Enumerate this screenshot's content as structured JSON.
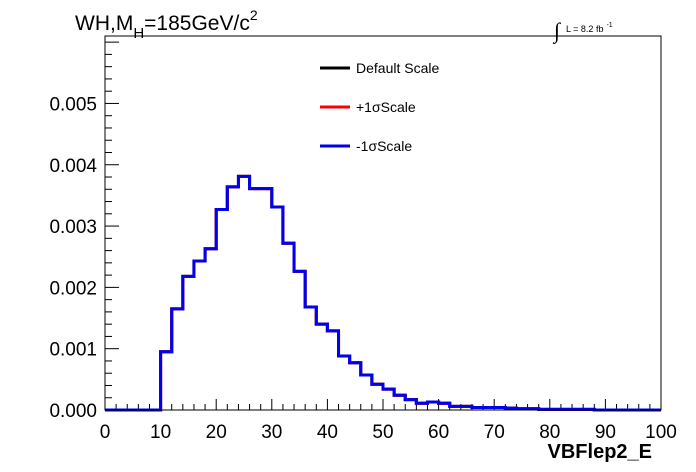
{
  "chart_data": {
    "type": "line",
    "title": "WH,M",
    "title_subscript": "H",
    "title_suffix": "=185GeV/c",
    "title_superscript": "2",
    "lumi_integral": "∫",
    "lumi_label": "L = 8.2 fb",
    "lumi_superscript": "-1",
    "xlabel": "VBFlep2_E",
    "ylabel": "",
    "xlim": [
      0,
      100
    ],
    "ylim": [
      0,
      0.0061
    ],
    "x_ticks": [
      0,
      10,
      20,
      30,
      40,
      50,
      60,
      70,
      80,
      90,
      100
    ],
    "x_tick_labels": [
      "0",
      "10",
      "20",
      "30",
      "40",
      "50",
      "60",
      "70",
      "80",
      "90",
      "100"
    ],
    "y_ticks": [
      0,
      0.001,
      0.002,
      0.003,
      0.004,
      0.005
    ],
    "y_tick_labels": [
      "0.000",
      "0.001",
      "0.002",
      "0.003",
      "0.004",
      "0.005"
    ],
    "bin_edges": [
      0,
      2,
      4,
      6,
      8,
      10,
      12,
      14,
      16,
      18,
      20,
      22,
      24,
      26,
      28,
      30,
      32,
      34,
      36,
      38,
      40,
      42,
      44,
      46,
      48,
      50,
      52,
      54,
      56,
      58,
      60,
      62,
      64,
      66,
      68,
      70,
      72,
      74,
      76,
      78,
      80,
      82,
      84,
      86,
      88,
      90,
      92,
      94,
      96,
      98,
      100
    ],
    "legend_position": "top-center",
    "series": [
      {
        "name": "Default Scale",
        "color": "#000000",
        "values": [
          0,
          0,
          0,
          0,
          0,
          0.00095,
          0.00165,
          0.00218,
          0.00243,
          0.00263,
          0.00327,
          0.00364,
          0.00381,
          0.00361,
          0.00361,
          0.00331,
          0.00272,
          0.00226,
          0.00168,
          0.0014,
          0.00129,
          0.00088,
          0.00077,
          0.00057,
          0.00042,
          0.00034,
          0.00024,
          0.00017,
          0.00011,
          0.00013,
          0.00011,
          6e-05,
          6e-05,
          4e-05,
          4e-05,
          4e-05,
          3e-05,
          2e-05,
          2e-05,
          1e-05,
          1e-05,
          1e-05,
          1e-05,
          1e-05,
          0,
          0,
          0,
          0,
          0,
          0
        ]
      },
      {
        "name": "+1σScale",
        "color": "#ff0000",
        "values": [
          0,
          0,
          0,
          0,
          0,
          0.00095,
          0.00165,
          0.00218,
          0.00243,
          0.00263,
          0.00327,
          0.00364,
          0.00381,
          0.00361,
          0.00361,
          0.00331,
          0.00272,
          0.00226,
          0.00168,
          0.0014,
          0.00129,
          0.00088,
          0.00077,
          0.00057,
          0.00042,
          0.00034,
          0.00024,
          0.00017,
          0.00011,
          0.00013,
          0.00011,
          6e-05,
          6e-05,
          4e-05,
          4e-05,
          4e-05,
          3e-05,
          2e-05,
          2e-05,
          1e-05,
          1e-05,
          1e-05,
          1e-05,
          1e-05,
          0,
          0,
          0,
          0,
          0,
          0
        ]
      },
      {
        "name": "-1σScale",
        "color": "#0000ee",
        "values": [
          0,
          0,
          0,
          0,
          0,
          0.00095,
          0.00165,
          0.00218,
          0.00243,
          0.00263,
          0.00327,
          0.00364,
          0.00381,
          0.00361,
          0.00361,
          0.00331,
          0.00272,
          0.00226,
          0.00168,
          0.0014,
          0.00129,
          0.00088,
          0.00077,
          0.00057,
          0.00042,
          0.00034,
          0.00024,
          0.00017,
          0.00011,
          0.00013,
          0.00011,
          6e-05,
          6e-05,
          4e-05,
          4e-05,
          4e-05,
          3e-05,
          2e-05,
          2e-05,
          1e-05,
          1e-05,
          1e-05,
          1e-05,
          1e-05,
          0,
          0,
          0,
          0,
          0,
          0
        ]
      }
    ]
  }
}
